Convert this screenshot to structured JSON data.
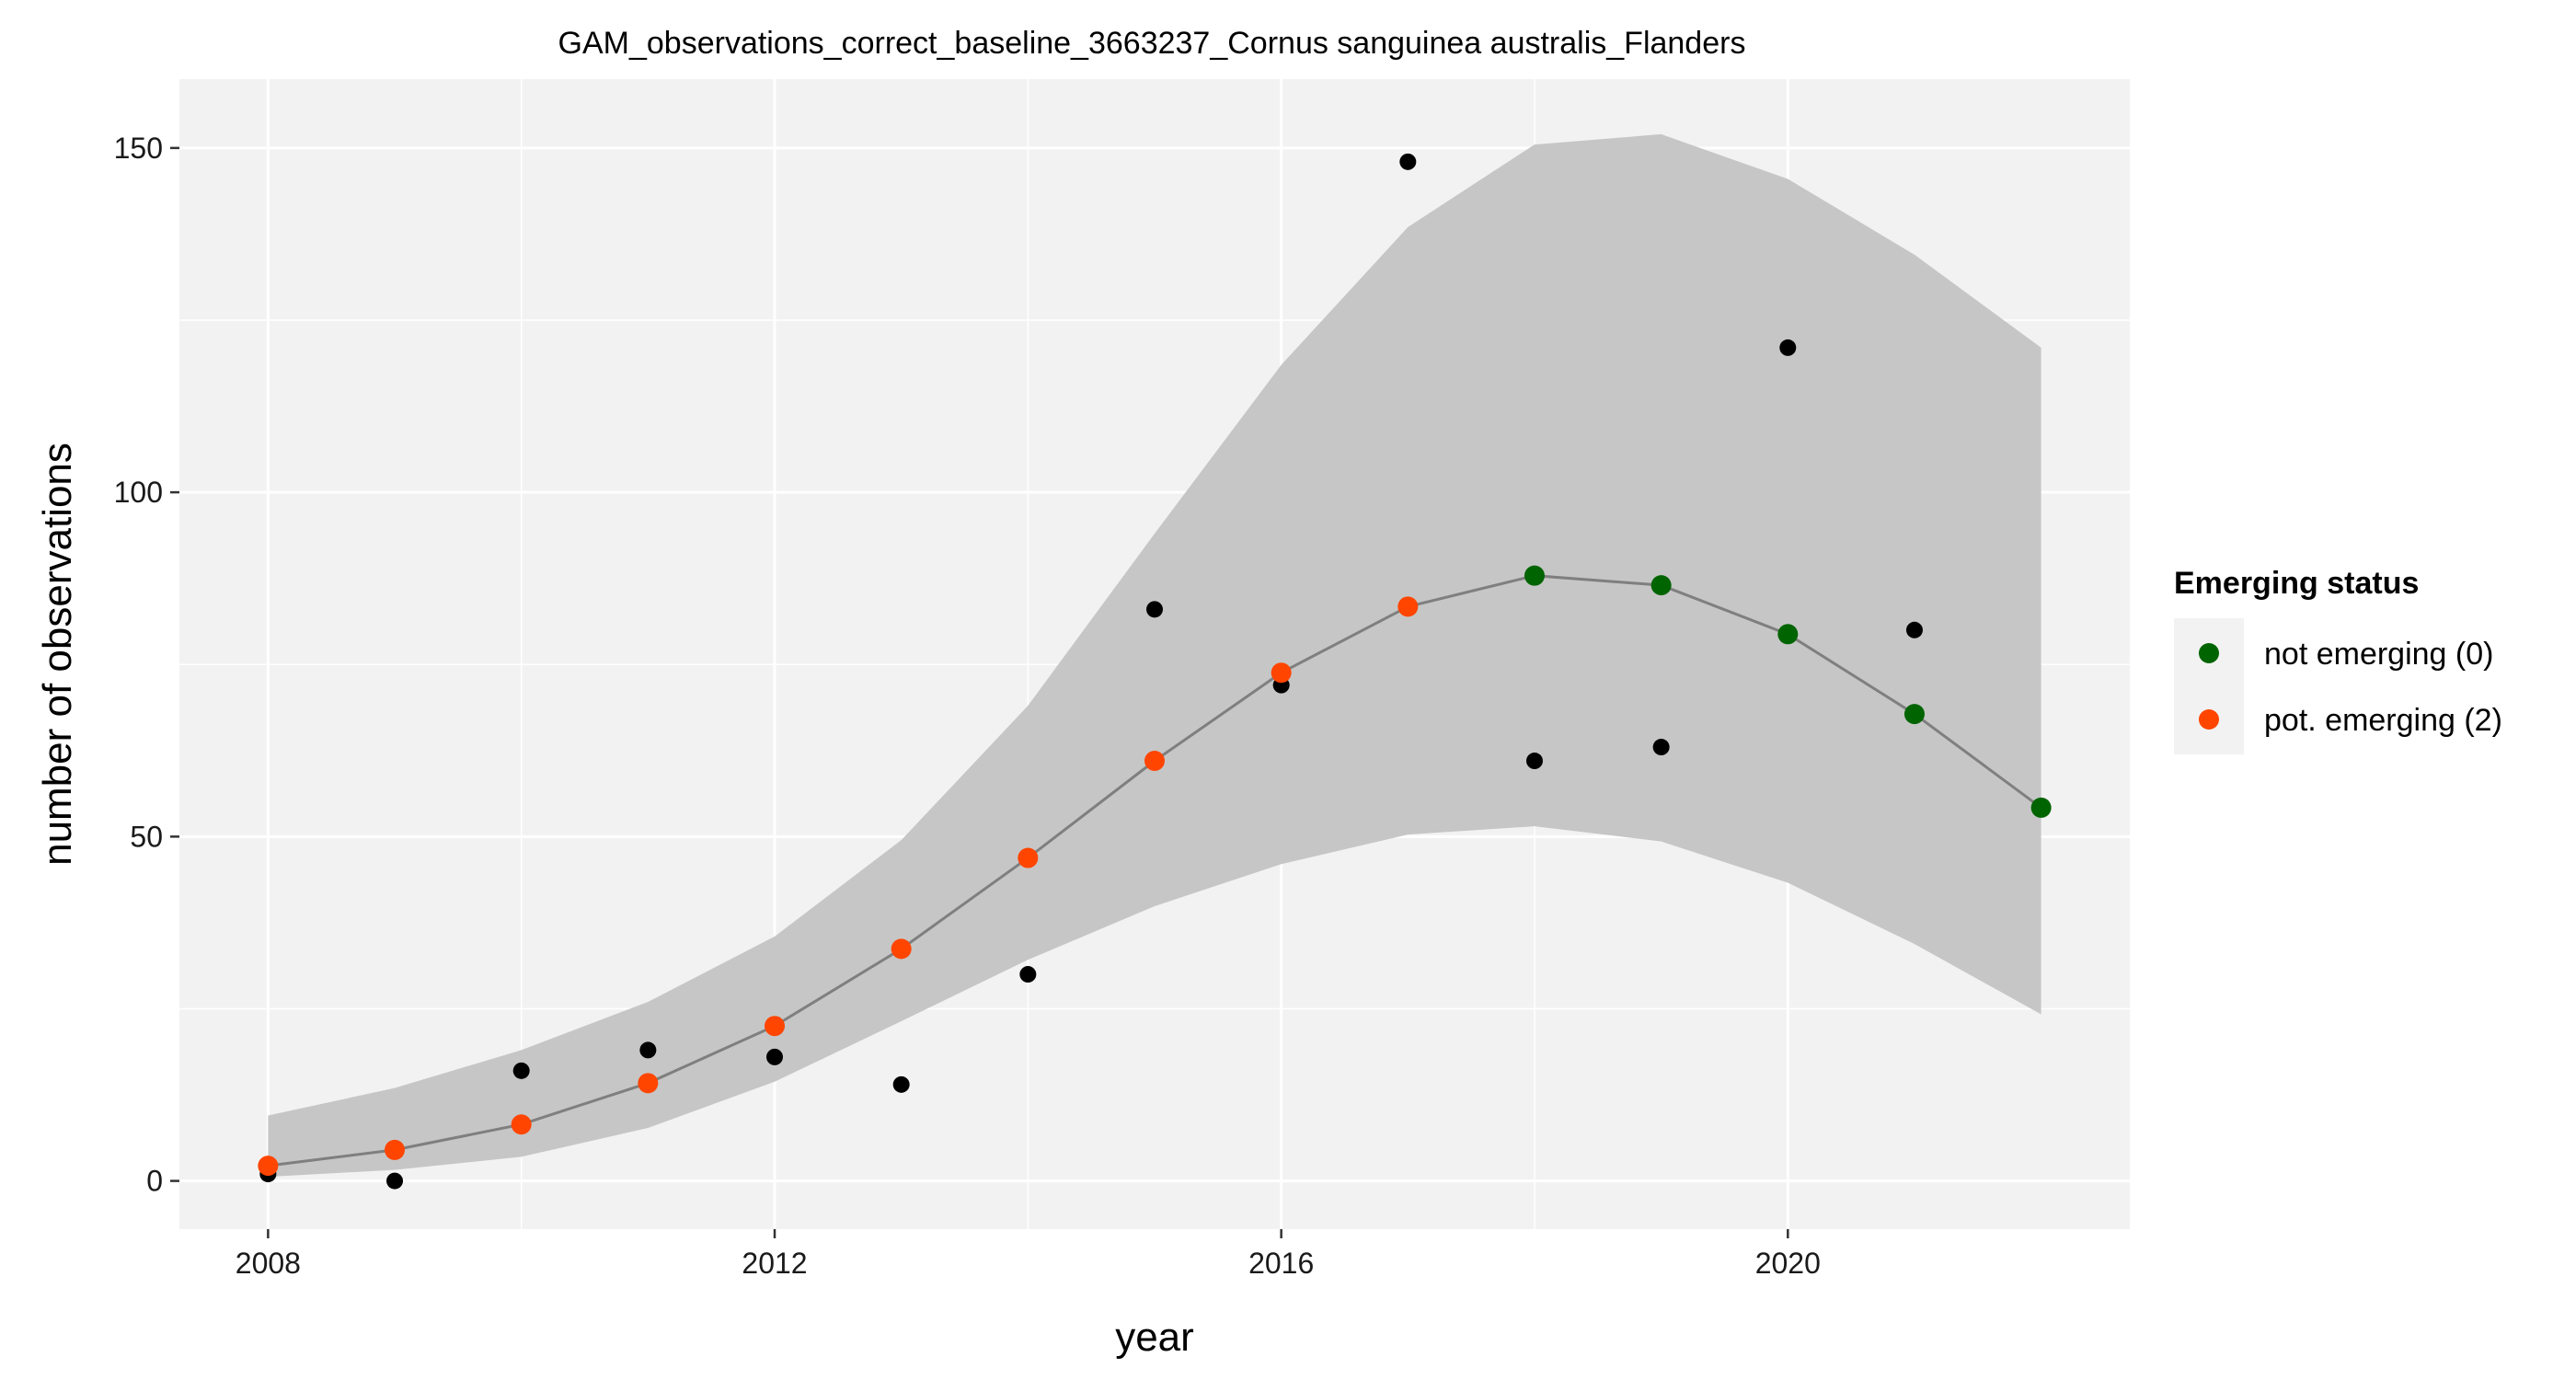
{
  "chart_data": {
    "type": "scatter",
    "title": "GAM_observations_correct_baseline_3663237_Cornus sanguinea australis_Flanders",
    "xlabel": "year",
    "ylabel": "number of observations",
    "xlim": [
      2007.3,
      2022.7
    ],
    "ylim": [
      -7,
      160
    ],
    "x_ticks": [
      2008,
      2012,
      2016,
      2020
    ],
    "x_tick_labels": [
      "2008",
      "2012",
      "2016",
      "2020"
    ],
    "y_ticks": [
      0,
      50,
      100,
      150
    ],
    "y_tick_labels": [
      "0",
      "50",
      "100",
      "150"
    ],
    "grid": true,
    "legend_position": "right",
    "legend": {
      "title": "Emerging status",
      "items": [
        {
          "label": "not emerging (0)",
          "color": "#006400"
        },
        {
          "label": "pot. emerging (2)",
          "color": "#FF4500"
        }
      ]
    },
    "colors": {
      "observed": "#000000",
      "ribbon": "#c6c6c6",
      "line": "#7f7f7f",
      "panel": "#f2f2f2",
      "grid": "#ffffff",
      "not_emerging": "#006400",
      "pot_emerging": "#FF4500"
    },
    "observed": {
      "x": [
        2008,
        2009,
        2010,
        2011,
        2012,
        2013,
        2014,
        2015,
        2016,
        2017,
        2018,
        2019,
        2020,
        2021
      ],
      "y": [
        1,
        0,
        16,
        19,
        18,
        14,
        30,
        83,
        72,
        148,
        61,
        63,
        121,
        80
      ]
    },
    "fit": {
      "x": [
        2008,
        2009,
        2010,
        2011,
        2012,
        2013,
        2014,
        2015,
        2016,
        2017,
        2018,
        2019,
        2020,
        2021,
        2022
      ],
      "y": [
        2.2,
        4.5,
        8.2,
        14.2,
        22.5,
        33.7,
        46.9,
        61.0,
        73.8,
        83.4,
        87.9,
        86.5,
        79.4,
        67.8,
        54.2
      ],
      "lower": [
        0.6,
        1.6,
        3.5,
        7.7,
        14.4,
        23.2,
        32.1,
        39.9,
        46.0,
        50.3,
        51.5,
        49.3,
        43.3,
        34.4,
        24.2
      ],
      "upper": [
        9.5,
        13.5,
        19.0,
        26.0,
        35.5,
        49.5,
        69.0,
        94.0,
        118.5,
        138.5,
        150.5,
        152.0,
        145.5,
        134.5,
        121.0
      ],
      "status": [
        2,
        2,
        2,
        2,
        2,
        2,
        2,
        2,
        2,
        2,
        0,
        0,
        0,
        0,
        0
      ]
    }
  }
}
